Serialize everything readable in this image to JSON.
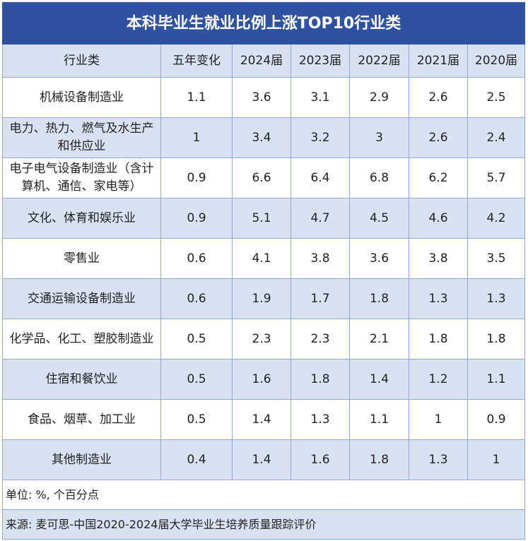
{
  "title": "本科毕业生就业比例上涨TOP10行业类",
  "headers": [
    "行业类",
    "五年变化",
    "2024届",
    "2023届",
    "2022届",
    "2021届",
    "2020届"
  ],
  "rows": [
    [
      "机械设备制造业",
      "1.1",
      "3.6",
      "3.1",
      "2.9",
      "2.6",
      "2.5"
    ],
    [
      "电力、热力、燃气及水生产和供应业",
      "1",
      "3.4",
      "3.2",
      "3",
      "2.6",
      "2.4"
    ],
    [
      "电子电气设备制造业（含计算机、通信、家电等）",
      "0.9",
      "6.6",
      "6.4",
      "6.8",
      "6.2",
      "5.7"
    ],
    [
      "文化、体育和娱乐业",
      "0.9",
      "5.1",
      "4.7",
      "4.5",
      "4.6",
      "4.2"
    ],
    [
      "零售业",
      "0.6",
      "4.1",
      "3.8",
      "3.6",
      "3.8",
      "3.5"
    ],
    [
      "交通运输设备制造业",
      "0.6",
      "1.9",
      "1.7",
      "1.8",
      "1.3",
      "1.3"
    ],
    [
      "化学品、化工、塑胶制造业",
      "0.5",
      "2.3",
      "2.3",
      "2.1",
      "1.8",
      "1.8"
    ],
    [
      "住宿和餐饮业",
      "0.5",
      "1.6",
      "1.8",
      "1.4",
      "1.2",
      "1.1"
    ],
    [
      "食品、烟草、加工业",
      "0.5",
      "1.4",
      "1.3",
      "1.1",
      "1",
      "0.9"
    ],
    [
      "其他制造业",
      "0.4",
      "1.4",
      "1.6",
      "1.8",
      "1.3",
      "1"
    ]
  ],
  "unit_note": "单位: %, 个百分点",
  "source_note": "来源: 麦可思-中国2020-2024届大学毕业生培养质量跟踪评价",
  "colors": {
    "title_bg": "#2f52a0",
    "band": "#d9e2f3",
    "border": "#8eaadb"
  }
}
